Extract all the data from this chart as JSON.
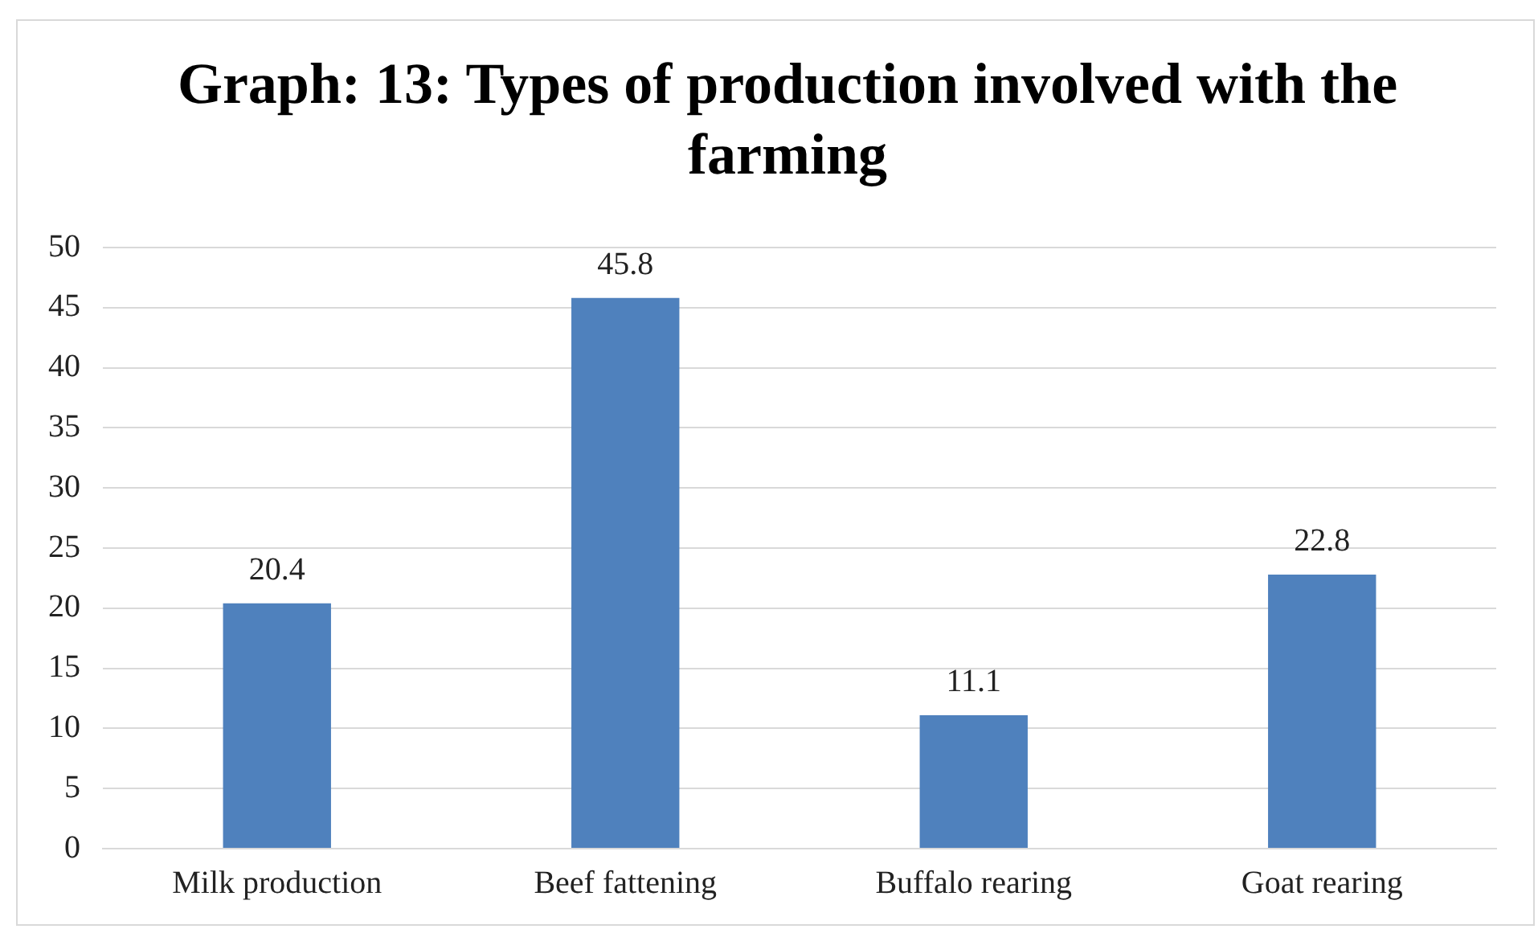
{
  "chart_data": {
    "type": "bar",
    "title": "Graph: 13: Types of production involved with the farming",
    "categories": [
      "Milk production",
      "Beef fattening",
      "Buffalo rearing",
      "Goat rearing"
    ],
    "values": [
      20.4,
      45.8,
      11.1,
      22.8
    ],
    "color": "#4f81bd",
    "ylim": [
      0,
      50
    ],
    "yticks": [
      0,
      5,
      10,
      15,
      20,
      25,
      30,
      35,
      40,
      45,
      50
    ],
    "grid": "y",
    "data_labels": true,
    "legend": false
  }
}
